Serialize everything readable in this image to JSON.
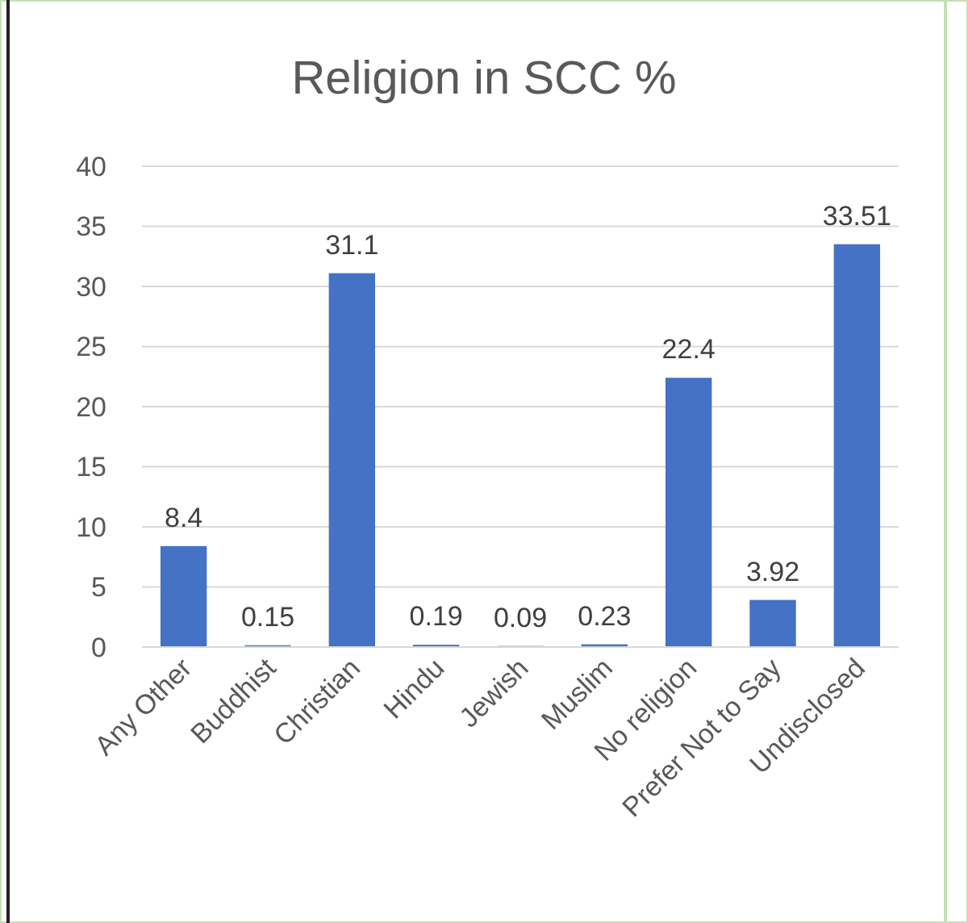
{
  "chart_data": {
    "type": "bar",
    "title": "Religion in SCC %",
    "categories": [
      "Any Other",
      "Buddhist",
      "Christian",
      "Hindu",
      "Jewish",
      "Muslim",
      "No religion",
      "Prefer Not to Say",
      "Undisclosed"
    ],
    "values": [
      8.4,
      0.15,
      31.1,
      0.19,
      0.09,
      0.23,
      22.4,
      3.92,
      33.51
    ],
    "color": "#4472c4",
    "ylim": [
      0,
      40
    ],
    "yticks": [
      0,
      5,
      10,
      15,
      20,
      25,
      30,
      35,
      40
    ],
    "grid": "y",
    "data_labels": true
  }
}
